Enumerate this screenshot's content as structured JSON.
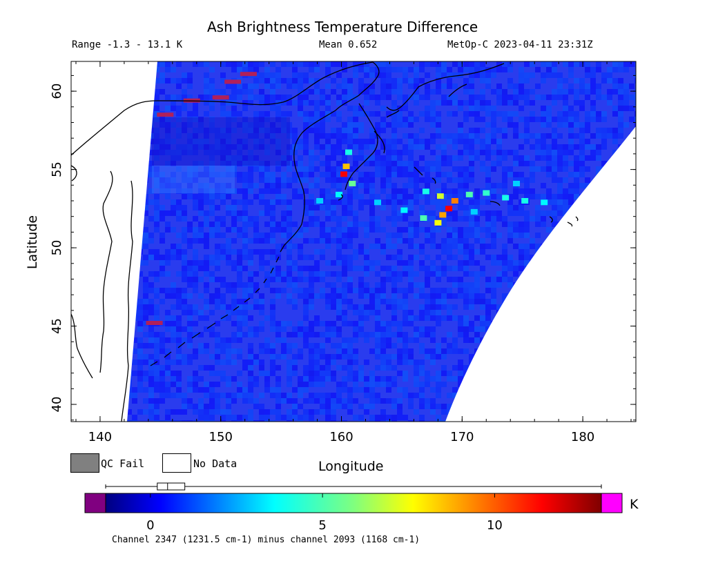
{
  "title": "Ash Brightness Temperature Difference",
  "stats": {
    "range": "Range -1.3 - 13.1 K",
    "mean": "Mean 0.652",
    "satellite_time": "MetOp-C 2023-04-11 23:31Z"
  },
  "axes": {
    "xlabel": "Longitude",
    "ylabel": "Latitude",
    "xlim": [
      137.6,
      184.4
    ],
    "ylim": [
      38.9,
      61.9
    ],
    "xticks": [
      {
        "value": 140,
        "label": "140"
      },
      {
        "value": 150,
        "label": "150"
      },
      {
        "value": 160,
        "label": "160"
      },
      {
        "value": 170,
        "label": "170"
      },
      {
        "value": 180,
        "label": "180"
      }
    ],
    "yticks": [
      {
        "value": 40,
        "label": "40"
      },
      {
        "value": 45,
        "label": "45"
      },
      {
        "value": 50,
        "label": "50"
      },
      {
        "value": 55,
        "label": "55"
      },
      {
        "value": 60,
        "label": "60"
      }
    ]
  },
  "legend": {
    "qc_fail": {
      "label": "QC Fail",
      "color": "#808080"
    },
    "no_data": {
      "label": "No Data",
      "color": "#ffffff"
    }
  },
  "colorbar": {
    "unit": "K",
    "min": -1.3,
    "max": 13.1,
    "under_color": "#800080",
    "over_color": "#ff00ff",
    "ticks": [
      {
        "value": 0,
        "label": "0"
      },
      {
        "value": 5,
        "label": "5"
      },
      {
        "value": 10,
        "label": "10"
      }
    ],
    "boxplot": {
      "min": -1.3,
      "q1": 0.2,
      "median": 0.5,
      "q3": 1.0,
      "max": 13.1
    },
    "caption": "Channel 2347 (1231.5 cm-1) minus channel 2093 (1168 cm-1)"
  },
  "chart_data": {
    "type": "heatmap",
    "title": "Ash Brightness Temperature Difference",
    "xlabel": "Longitude",
    "ylabel": "Latitude",
    "xlim": [
      137.6,
      184.4
    ],
    "ylim": [
      38.9,
      61.9
    ],
    "value_unit": "K",
    "background_value": 0.6,
    "ash_plume_points": [
      {
        "lon": 160.2,
        "lat": 54.7,
        "value": 11.5
      },
      {
        "lon": 160.4,
        "lat": 55.2,
        "value": 8.5
      },
      {
        "lon": 160.9,
        "lat": 54.1,
        "value": 5.5
      },
      {
        "lon": 160.6,
        "lat": 56.1,
        "value": 4.0
      },
      {
        "lon": 159.8,
        "lat": 53.4,
        "value": 3.5
      },
      {
        "lon": 158.2,
        "lat": 53.0,
        "value": 3.0
      },
      {
        "lon": 163.0,
        "lat": 52.9,
        "value": 3.0
      },
      {
        "lon": 165.2,
        "lat": 52.4,
        "value": 3.5
      },
      {
        "lon": 166.8,
        "lat": 51.9,
        "value": 5.0
      },
      {
        "lon": 168.0,
        "lat": 51.6,
        "value": 7.5
      },
      {
        "lon": 168.4,
        "lat": 52.1,
        "value": 9.0
      },
      {
        "lon": 168.9,
        "lat": 52.5,
        "value": 11.5
      },
      {
        "lon": 169.4,
        "lat": 53.0,
        "value": 9.5
      },
      {
        "lon": 168.2,
        "lat": 53.3,
        "value": 7.0
      },
      {
        "lon": 167.0,
        "lat": 53.6,
        "value": 4.0
      },
      {
        "lon": 170.6,
        "lat": 53.4,
        "value": 5.0
      },
      {
        "lon": 172.0,
        "lat": 53.5,
        "value": 4.5
      },
      {
        "lon": 173.6,
        "lat": 53.2,
        "value": 4.0
      },
      {
        "lon": 175.2,
        "lat": 53.0,
        "value": 4.0
      },
      {
        "lon": 176.8,
        "lat": 52.9,
        "value": 3.5
      },
      {
        "lon": 171.0,
        "lat": 52.3,
        "value": 3.0
      },
      {
        "lon": 174.5,
        "lat": 54.1,
        "value": 3.0
      }
    ],
    "qc_fail_points": [
      {
        "lon": 152.3,
        "lat": 61.1
      },
      {
        "lon": 151.0,
        "lat": 60.6
      },
      {
        "lon": 150.0,
        "lat": 59.6
      },
      {
        "lon": 147.6,
        "lat": 59.4
      },
      {
        "lon": 145.4,
        "lat": 58.5
      },
      {
        "lon": 144.5,
        "lat": 45.2
      }
    ]
  }
}
